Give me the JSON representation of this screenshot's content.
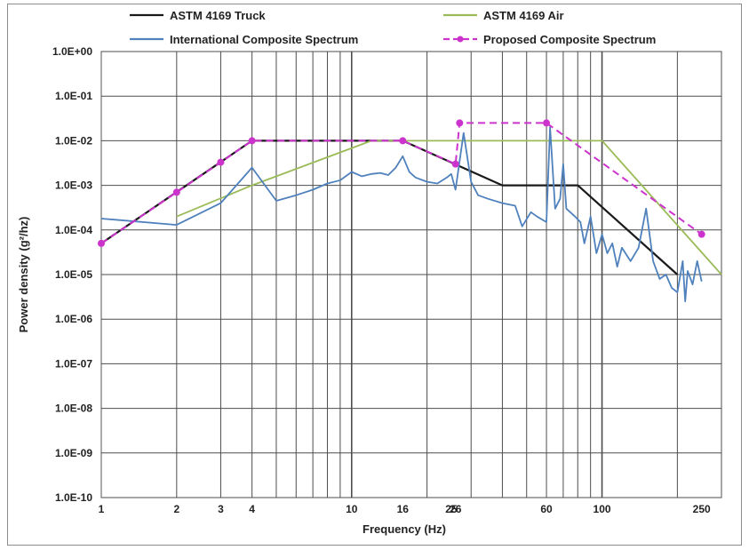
{
  "chart_data": {
    "type": "line",
    "title": "",
    "xlabel": "Frequency (Hz)",
    "ylabel": "Power density (g²/hz)",
    "x_scale": "log",
    "y_scale": "log",
    "xlim": [
      1,
      300
    ],
    "ylim": [
      1e-10,
      1
    ],
    "grid": true,
    "legend_position": "top",
    "x_tick_labels": [
      {
        "value": 1,
        "label": "1"
      },
      {
        "value": 2,
        "label": "2"
      },
      {
        "value": 3,
        "label": "3"
      },
      {
        "value": 4,
        "label": "4"
      },
      {
        "value": 10,
        "label": "10"
      },
      {
        "value": 16,
        "label": "16"
      },
      {
        "value": 25,
        "label": "25"
      },
      {
        "value": 26,
        "label": "26"
      },
      {
        "value": 60,
        "label": "60"
      },
      {
        "value": 100,
        "label": "100"
      },
      {
        "value": 250,
        "label": "250"
      }
    ],
    "y_tick_labels": [
      {
        "value": 1,
        "label": "1.0E+00"
      },
      {
        "value": 0.1,
        "label": "1.0E-01"
      },
      {
        "value": 0.01,
        "label": "1.0E-02"
      },
      {
        "value": 0.001,
        "label": "1.0E-03"
      },
      {
        "value": 0.0001,
        "label": "1.0E-04"
      },
      {
        "value": 1e-05,
        "label": "1.0E-05"
      },
      {
        "value": 1e-06,
        "label": "1.0E-06"
      },
      {
        "value": 1e-07,
        "label": "1.0E-07"
      },
      {
        "value": 1e-08,
        "label": "1.0E-08"
      },
      {
        "value": 1e-09,
        "label": "1.0E-09"
      },
      {
        "value": 1e-10,
        "label": "1.0E-10"
      }
    ],
    "series": [
      {
        "name": "ASTM 4169 Truck",
        "color": "#1a1a1a",
        "style": "solid",
        "markers": false,
        "points": [
          [
            1,
            5e-05
          ],
          [
            4,
            0.01
          ],
          [
            16,
            0.01
          ],
          [
            40,
            0.001
          ],
          [
            80,
            0.001
          ],
          [
            200,
            1e-05
          ]
        ]
      },
      {
        "name": "ASTM 4169 Air",
        "color": "#9bbb59",
        "style": "solid",
        "markers": false,
        "points": [
          [
            2,
            0.0002
          ],
          [
            4,
            0.001
          ],
          [
            12,
            0.01
          ],
          [
            100,
            0.01
          ],
          [
            300,
            1e-05
          ]
        ]
      },
      {
        "name": "International Composite Spectrum",
        "color": "#4f81bd",
        "style": "solid",
        "markers": false,
        "points": [
          [
            1,
            0.00018
          ],
          [
            2,
            0.00013
          ],
          [
            3,
            0.0004
          ],
          [
            4,
            0.0025
          ],
          [
            5,
            0.00045
          ],
          [
            6,
            0.0006
          ],
          [
            7,
            0.0008
          ],
          [
            8,
            0.0011
          ],
          [
            9,
            0.0013
          ],
          [
            10,
            0.002
          ],
          [
            11,
            0.0016
          ],
          [
            12,
            0.0018
          ],
          [
            13,
            0.0019
          ],
          [
            14,
            0.0017
          ],
          [
            15,
            0.0025
          ],
          [
            16,
            0.0045
          ],
          [
            17,
            0.002
          ],
          [
            18,
            0.0015
          ],
          [
            20,
            0.0012
          ],
          [
            22,
            0.0011
          ],
          [
            24,
            0.0015
          ],
          [
            25,
            0.0018
          ],
          [
            26,
            0.0008
          ],
          [
            28,
            0.015
          ],
          [
            30,
            0.0012
          ],
          [
            32,
            0.0006
          ],
          [
            35,
            0.0005
          ],
          [
            40,
            0.0004
          ],
          [
            45,
            0.00035
          ],
          [
            48,
            0.00012
          ],
          [
            52,
            0.00025
          ],
          [
            55,
            0.0002
          ],
          [
            60,
            0.00015
          ],
          [
            62,
            0.02
          ],
          [
            65,
            0.0003
          ],
          [
            68,
            0.0005
          ],
          [
            70,
            0.003
          ],
          [
            72,
            0.0003
          ],
          [
            78,
            0.0002
          ],
          [
            82,
            0.00015
          ],
          [
            85,
            5e-05
          ],
          [
            90,
            0.0002
          ],
          [
            95,
            3e-05
          ],
          [
            100,
            8e-05
          ],
          [
            105,
            3e-05
          ],
          [
            110,
            5e-05
          ],
          [
            115,
            1.5e-05
          ],
          [
            120,
            4e-05
          ],
          [
            130,
            2e-05
          ],
          [
            140,
            4e-05
          ],
          [
            150,
            0.0003
          ],
          [
            160,
            2e-05
          ],
          [
            170,
            8e-06
          ],
          [
            180,
            1e-05
          ],
          [
            190,
            5e-06
          ],
          [
            200,
            4e-06
          ],
          [
            210,
            2e-05
          ],
          [
            215,
            2.5e-06
          ],
          [
            220,
            1.2e-05
          ],
          [
            230,
            6e-06
          ],
          [
            240,
            2e-05
          ],
          [
            250,
            7e-06
          ]
        ]
      },
      {
        "name": "Proposed Composite Spectrum",
        "color": "#cc33cc",
        "style": "dashed",
        "markers": true,
        "points": [
          [
            1,
            5e-05
          ],
          [
            2,
            0.0007
          ],
          [
            3,
            0.0033
          ],
          [
            4,
            0.01
          ],
          [
            16,
            0.01
          ],
          [
            26,
            0.003
          ],
          [
            27,
            0.025
          ],
          [
            60,
            0.025
          ],
          [
            250,
            8e-05
          ]
        ]
      }
    ]
  }
}
